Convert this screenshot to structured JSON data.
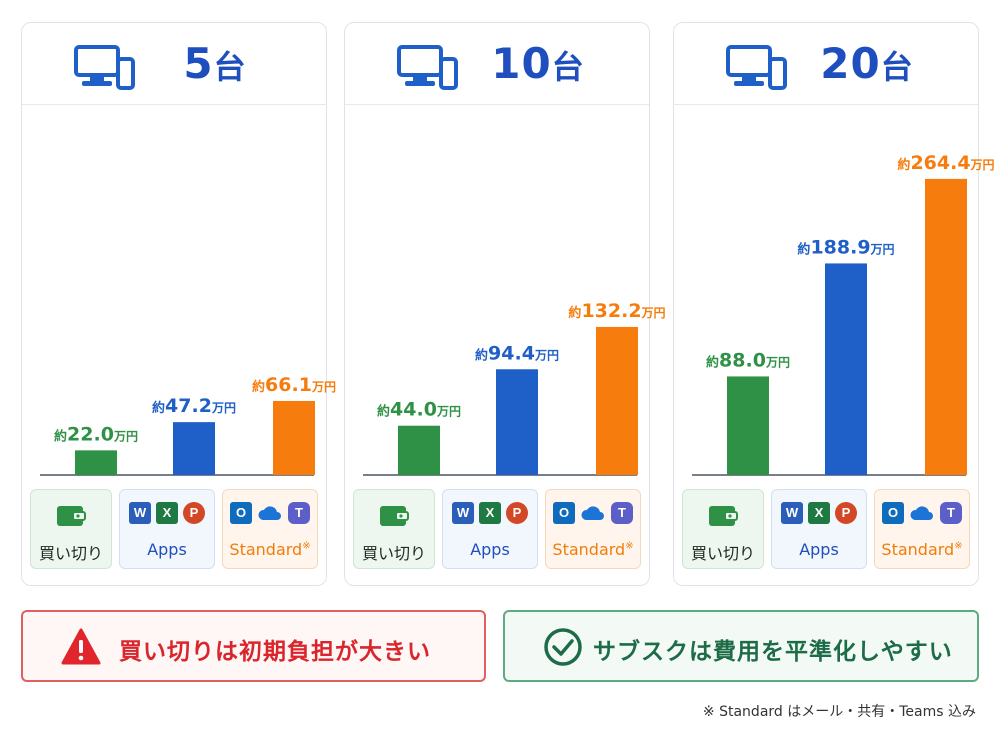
{
  "chart_data": [
    {
      "type": "bar",
      "title": "5台",
      "categories": [
        "買い切り",
        "Apps",
        "Standard※"
      ],
      "values": [
        22.0,
        47.2,
        66.1
      ],
      "value_labels": [
        {
          "prefix": "約",
          "number": "22.0",
          "unit": "万円"
        },
        {
          "prefix": "約",
          "number": "47.2",
          "unit": "万円"
        },
        {
          "prefix": "約",
          "number": "66.1",
          "unit": "万円"
        }
      ],
      "colors": [
        "#2e9146",
        "#1f5fc8",
        "#f67d0d"
      ],
      "ylim": [
        0,
        300
      ],
      "grid": false
    },
    {
      "type": "bar",
      "title": "10台",
      "categories": [
        "買い切り",
        "Apps",
        "Standard※"
      ],
      "values": [
        44.0,
        94.4,
        132.2
      ],
      "value_labels": [
        {
          "prefix": "約",
          "number": "44.0",
          "unit": "万円"
        },
        {
          "prefix": "約",
          "number": "94.4",
          "unit": "万円"
        },
        {
          "prefix": "約",
          "number": "132.2",
          "unit": "万円"
        }
      ],
      "colors": [
        "#2e9146",
        "#1f5fc8",
        "#f67d0d"
      ],
      "ylim": [
        0,
        300
      ],
      "grid": false
    },
    {
      "type": "bar",
      "title": "20台",
      "categories": [
        "買い切り",
        "Apps",
        "Standard※"
      ],
      "values": [
        88.0,
        188.9,
        264.4
      ],
      "value_labels": [
        {
          "prefix": "約",
          "number": "88.0",
          "unit": "万円"
        },
        {
          "prefix": "約",
          "number": "188.9",
          "unit": "万円"
        },
        {
          "prefix": "約",
          "number": "264.4",
          "unit": "万円"
        }
      ],
      "colors": [
        "#2e9146",
        "#1f5fc8",
        "#f67d0d"
      ],
      "ylim": [
        0,
        300
      ],
      "grid": false
    }
  ],
  "panels": [
    {
      "count": "5",
      "unit": "台"
    },
    {
      "count": "10",
      "unit": "台"
    },
    {
      "count": "20",
      "unit": "台"
    }
  ],
  "legend": {
    "buy_label": "買い切り",
    "apps_label": "Apps",
    "standard_label": "Standard",
    "standard_mark": "※",
    "icons": [
      "wallet-icon",
      "word-icon",
      "excel-icon",
      "powerpoint-icon",
      "outlook-icon",
      "onedrive-icon",
      "teams-icon"
    ],
    "glyphs": {
      "word": "W",
      "excel": "X",
      "ppt": "P",
      "outlook": "O",
      "teams": "T"
    }
  },
  "messages": {
    "warning": "買い切りは初期負担が大きい",
    "positive": "サブスクは費用を平準化しやすい"
  },
  "footnote": "※ Standard はメール・共有・Teams 込み",
  "colors": {
    "buy": "#2e9146",
    "apps": "#1f5fc8",
    "standard": "#f67d0d",
    "title": "#1f4fbf",
    "warning": "#d9262c",
    "positive": "#1e6b48"
  }
}
